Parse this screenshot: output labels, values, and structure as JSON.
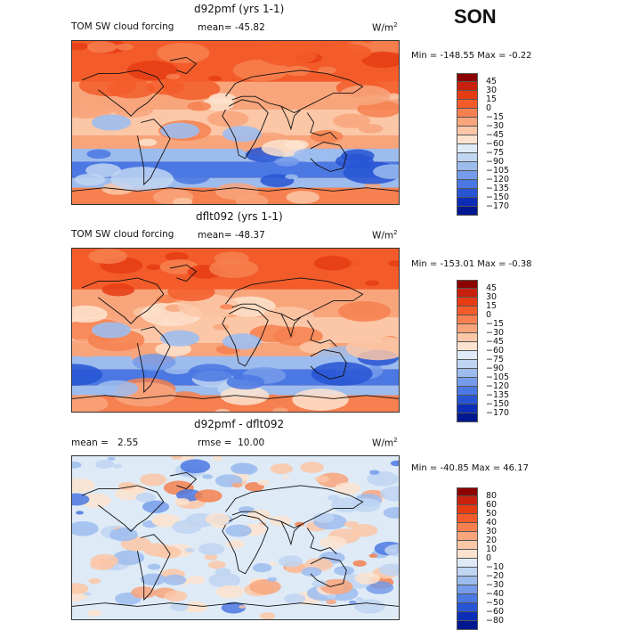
{
  "season": "SON",
  "panels": [
    {
      "title": "d92pmf (yrs 1-1)",
      "variable": "TOM SW cloud forcing",
      "mean_label": "mean=",
      "mean_value": "-45.82",
      "units": "W/m",
      "units_exp": "2",
      "min_max": "Min = -148.55 Max =  -0.22",
      "levels": [
        "45",
        "30",
        "15",
        "0",
        "-15",
        "-30",
        "-45",
        "-60",
        "-75",
        "-90",
        "-105",
        "-120",
        "-135",
        "-150",
        "-170"
      ],
      "colors": [
        "#8b0000",
        "#c8200d",
        "#e63c14",
        "#f35c2a",
        "#f6804f",
        "#f8a57c",
        "#fbc7a7",
        "#fde3cf",
        "#deebf7",
        "#c0d5f2",
        "#9dbcee",
        "#759bea",
        "#4b78e2",
        "#2755d4",
        "#0c2db8",
        "#00188f"
      ]
    },
    {
      "title": "dflt092 (yrs 1-1)",
      "variable": "TOM SW cloud forcing",
      "mean_label": "mean=",
      "mean_value": "-48.37",
      "units": "W/m",
      "units_exp": "2",
      "min_max": "Min = -153.01 Max =  -0.38",
      "levels": [
        "45",
        "30",
        "15",
        "0",
        "-15",
        "-30",
        "-45",
        "-60",
        "-75",
        "-90",
        "-105",
        "-120",
        "-135",
        "-150",
        "-170"
      ],
      "colors": [
        "#8b0000",
        "#c8200d",
        "#e63c14",
        "#f35c2a",
        "#f6804f",
        "#f8a57c",
        "#fbc7a7",
        "#fde3cf",
        "#deebf7",
        "#c0d5f2",
        "#9dbcee",
        "#759bea",
        "#4b78e2",
        "#2755d4",
        "#0c2db8",
        "#00188f"
      ]
    },
    {
      "title": "d92pmf - dflt092",
      "mean_label": "mean =",
      "mean_value": "2.55",
      "rmse_label": "rmse =",
      "rmse_value": "10.00",
      "units": "W/m",
      "units_exp": "2",
      "min_max": "Min = -40.85 Max =  46.17",
      "levels": [
        "80",
        "60",
        "50",
        "40",
        "30",
        "20",
        "10",
        "0",
        "-10",
        "-20",
        "-30",
        "-40",
        "-50",
        "-60",
        "-80"
      ],
      "colors": [
        "#8b0000",
        "#c8200d",
        "#e63c14",
        "#f35c2a",
        "#f6804f",
        "#f8a57c",
        "#fbc7a7",
        "#fde3cf",
        "#deebf7",
        "#c0d5f2",
        "#9dbcee",
        "#759bea",
        "#4b78e2",
        "#2755d4",
        "#0c2db8",
        "#00188f"
      ]
    }
  ],
  "chart_data": [
    {
      "type": "heatmap",
      "title": "d92pmf (yrs 1-1)",
      "subtitle": "TOM SW cloud forcing",
      "units": "W/m2",
      "mean": -45.82,
      "min": -148.55,
      "max": -0.22,
      "levels": [
        45,
        30,
        15,
        0,
        -15,
        -30,
        -45,
        -60,
        -75,
        -90,
        -105,
        -120,
        -135,
        -150,
        -170
      ]
    },
    {
      "type": "heatmap",
      "title": "dflt092 (yrs 1-1)",
      "subtitle": "TOM SW cloud forcing",
      "units": "W/m2",
      "mean": -48.37,
      "min": -153.01,
      "max": -0.38,
      "levels": [
        45,
        30,
        15,
        0,
        -15,
        -30,
        -45,
        -60,
        -75,
        -90,
        -105,
        -120,
        -135,
        -150,
        -170
      ]
    },
    {
      "type": "heatmap",
      "title": "d92pmf - dflt092",
      "units": "W/m2",
      "mean": 2.55,
      "rmse": 10.0,
      "min": -40.85,
      "max": 46.17,
      "levels": [
        80,
        60,
        50,
        40,
        30,
        20,
        10,
        0,
        -10,
        -20,
        -30,
        -40,
        -50,
        -60,
        -80
      ]
    }
  ]
}
